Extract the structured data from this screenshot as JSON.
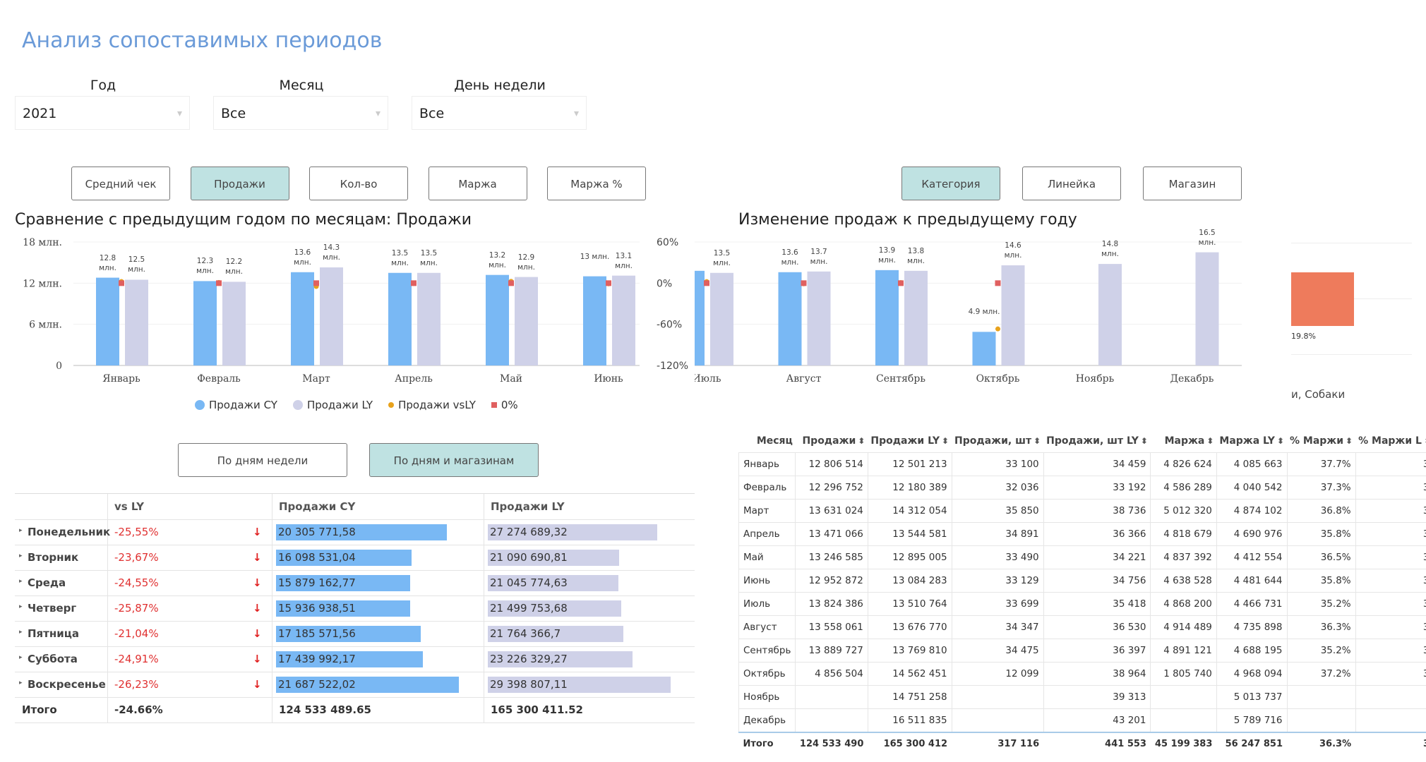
{
  "title": "Анализ сопоставимых периодов",
  "filters": [
    {
      "label": "Год",
      "value": "2021"
    },
    {
      "label": "Месяц",
      "value": "Все"
    },
    {
      "label": "День недели",
      "value": "Все"
    }
  ],
  "measure_buttons": [
    {
      "label": "Средний чек",
      "active": false
    },
    {
      "label": "Продажи",
      "active": true
    },
    {
      "label": "Кол-во",
      "active": false
    },
    {
      "label": "Маржа",
      "active": false
    },
    {
      "label": "Маржа %",
      "active": false
    }
  ],
  "breakdown_buttons": [
    {
      "label": "Категория",
      "active": true
    },
    {
      "label": "Линейка",
      "active": false
    },
    {
      "label": "Магазин",
      "active": false
    }
  ],
  "table_buttons": [
    {
      "label": "По дням недели",
      "active": false
    },
    {
      "label": "По дням и магазинам",
      "active": true
    }
  ],
  "chart_data": [
    {
      "type": "bar",
      "title": "Сравнение с предыдущим годом по месяцам: Продажи",
      "categories": [
        "Январь",
        "Февраль",
        "Март",
        "Апрель",
        "Май",
        "Июнь",
        "Июль",
        "Август",
        "Сентябрь",
        "Октябрь",
        "Ноябрь",
        "Декабрь"
      ],
      "series": [
        {
          "name": "Продажи CY",
          "color": "#79b8f4",
          "marker": "bar",
          "values": [
            12.8,
            12.3,
            13.6,
            13.5,
            13.2,
            13,
            13.8,
            13.6,
            13.9,
            4.9,
            null,
            null
          ],
          "value_labels": [
            "12.8 млн.",
            "12.3 млн.",
            "13.6 млн.",
            "13.5 млн.",
            "13.2 млн.",
            "13 млн.",
            null,
            "13.6 млн.",
            "13.9 млн.",
            "4.9 млн.",
            null,
            null
          ]
        },
        {
          "name": "Продажи LY",
          "color": "#cfd1e8",
          "marker": "bar",
          "values": [
            12.5,
            12.2,
            14.3,
            13.5,
            12.9,
            13.1,
            13.5,
            13.7,
            13.8,
            14.6,
            14.8,
            16.5
          ],
          "value_labels": [
            "12.5 млн.",
            "12.2 млн.",
            "14.3 млн.",
            "13.5 млн.",
            "12.9 млн.",
            "13.1 млн.",
            "13.5 млн.",
            "13.7 млн.",
            "13.8 млн.",
            "14.6 млн.",
            "14.8 млн.",
            "16.5 млн."
          ]
        },
        {
          "name": "Продажи vsLY",
          "color": "#e8a21c",
          "marker": "circle",
          "axis": "y2",
          "values": [
            2.4,
            1.0,
            -4.8,
            -0.5,
            2.7,
            -1.0,
            2.3,
            -0.9,
            0.9,
            -66.7,
            null,
            null
          ]
        },
        {
          "name": "0%",
          "color": "#e06060",
          "marker": "square",
          "axis": "y2",
          "values": [
            0,
            0,
            0,
            0,
            0,
            0,
            0,
            0,
            0,
            0,
            null,
            null
          ]
        }
      ],
      "ylim": [
        0,
        18
      ],
      "yticks": [
        0,
        {
          "value": 6,
          "label": "6 млн."
        },
        {
          "value": 12,
          "label": "12 млн."
        },
        {
          "value": 18,
          "label": "18 млн."
        }
      ],
      "y2lim": [
        -120,
        60
      ],
      "y2ticks": [
        {
          "value": -120,
          "label": "-120%"
        },
        {
          "value": -60,
          "label": "-60%"
        },
        {
          "value": 0,
          "label": "0%"
        },
        {
          "value": 60,
          "label": "60%"
        }
      ],
      "legend": "bottom",
      "grid": true
    },
    {
      "type": "bar",
      "title": "Изменение продаж к предыдущему году",
      "categories": [
        "и, Собаки"
      ],
      "values": [
        19.8
      ],
      "value_labels": [
        "19.8%"
      ],
      "color": "#ee7b5c"
    }
  ],
  "weekday_table": {
    "header": [
      "vs LY",
      "Продажи CY",
      "Продажи LY"
    ],
    "rows": [
      [
        "Понедельник",
        "-25,55%",
        "20 305 771,58",
        "27 274 689,32"
      ],
      [
        "Вторник",
        "-23,67%",
        "16 098 531,04",
        "21 090 690,81"
      ],
      [
        "Среда",
        "-24,55%",
        "15 879 162,77",
        "21 045 774,63"
      ],
      [
        "Четверг",
        "-25,87%",
        "15 936 938,51",
        "21 499 753,68"
      ],
      [
        "Пятница",
        "-21,04%",
        "17 185 571,56",
        "21 764 366,7"
      ],
      [
        "Суббота",
        "-24,91%",
        "17 439 992,17",
        "23 226 329,27"
      ],
      [
        "Воскресенье",
        "-26,23%",
        "21 687 522,02",
        "29 398 807,11"
      ]
    ],
    "total": [
      "Итого",
      "-24.66%",
      "124 533 489.65",
      "165 300 411.52"
    ]
  },
  "month_table": {
    "header": [
      "Месяц",
      "Продажи",
      "Продажи LY",
      "Продажи, шт",
      "Продажи, шт LY",
      "Маржа",
      "Маржа LY",
      "% Маржи",
      "% Маржи L"
    ],
    "rows": [
      [
        "Январь",
        "12 806 514",
        "12 501 213",
        "33 100",
        "34 459",
        "4 826 624",
        "4 085 663",
        "37.7%",
        "3"
      ],
      [
        "Февраль",
        "12 296 752",
        "12 180 389",
        "32 036",
        "33 192",
        "4 586 289",
        "4 040 542",
        "37.3%",
        "3"
      ],
      [
        "Март",
        "13 631 024",
        "14 312 054",
        "35 850",
        "38 736",
        "5 012 320",
        "4 874 102",
        "36.8%",
        "3"
      ],
      [
        "Апрель",
        "13 471 066",
        "13 544 581",
        "34 891",
        "36 366",
        "4 818 679",
        "4 690 976",
        "35.8%",
        "3"
      ],
      [
        "Май",
        "13 246 585",
        "12 895 005",
        "33 490",
        "34 221",
        "4 837 392",
        "4 412 554",
        "36.5%",
        "3"
      ],
      [
        "Июнь",
        "12 952 872",
        "13 084 283",
        "33 129",
        "34 756",
        "4 638 528",
        "4 481 644",
        "35.8%",
        "3"
      ],
      [
        "Июль",
        "13 824 386",
        "13 510 764",
        "33 699",
        "35 418",
        "4 868 200",
        "4 466 731",
        "35.2%",
        "3"
      ],
      [
        "Август",
        "13 558 061",
        "13 676 770",
        "34 347",
        "36 530",
        "4 914 489",
        "4 735 898",
        "36.3%",
        "3"
      ],
      [
        "Сентябрь",
        "13 889 727",
        "13 769 810",
        "34 475",
        "36 397",
        "4 891 121",
        "4 688 195",
        "35.2%",
        "3"
      ],
      [
        "Октябрь",
        "4 856 504",
        "14 562 451",
        "12 099",
        "38 964",
        "1 805 740",
        "4 968 094",
        "37.2%",
        "3"
      ],
      [
        "Ноябрь",
        null,
        "14 751 258",
        null,
        "39 313",
        null,
        "5 013 737",
        null,
        null
      ],
      [
        "Декабрь",
        null,
        "16 511 835",
        null,
        "43 201",
        null,
        "5 789 716",
        null,
        null
      ]
    ],
    "total": [
      "Итого",
      "124 533 490",
      "165 300 412",
      "317 116",
      "441 553",
      "45 199 383",
      "56 247 851",
      "36.3%",
      "3"
    ]
  }
}
